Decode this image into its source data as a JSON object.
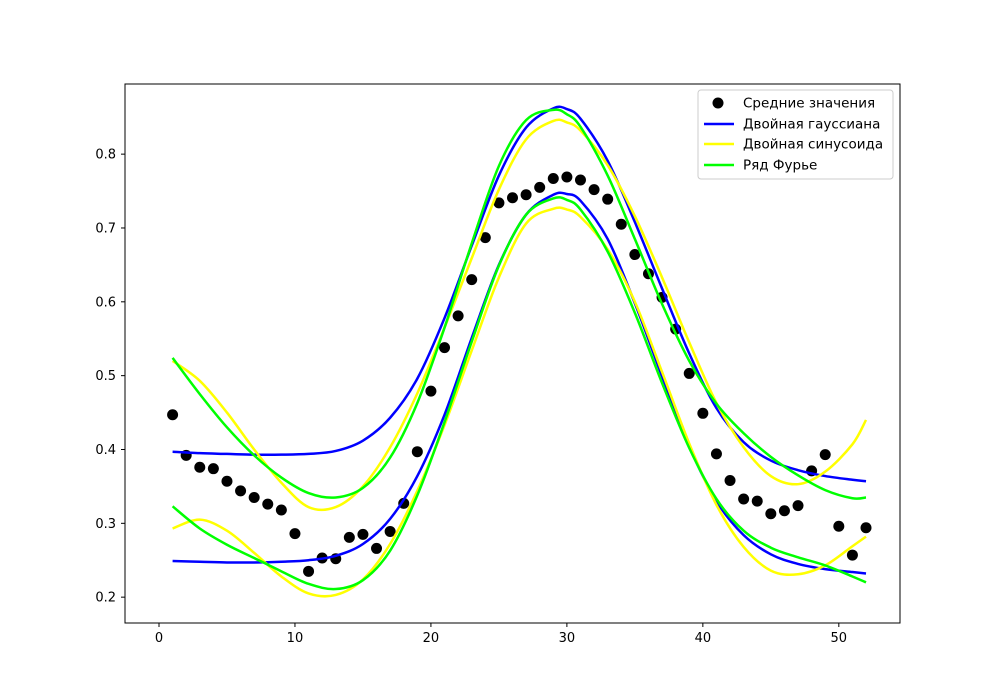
{
  "chart_data": {
    "type": "scatter",
    "title": "",
    "xlabel": "",
    "ylabel": "",
    "xlim": [
      -2.5,
      54.5
    ],
    "ylim": [
      0.165,
      0.895
    ],
    "xticks": [
      0,
      10,
      20,
      30,
      40,
      50
    ],
    "yticks": [
      0.2,
      0.3,
      0.4,
      0.5,
      0.6,
      0.7,
      0.8
    ],
    "legend_position": "top-right",
    "scatter": {
      "name": "Средние значения",
      "color": "#000000",
      "x": [
        1,
        2,
        3,
        4,
        5,
        6,
        7,
        8,
        9,
        10,
        11,
        12,
        13,
        14,
        15,
        16,
        17,
        18,
        19,
        20,
        21,
        22,
        23,
        24,
        25,
        26,
        27,
        28,
        29,
        30,
        31,
        32,
        33,
        34,
        35,
        36,
        37,
        38,
        39,
        40,
        41,
        42,
        43,
        44,
        45,
        46,
        47,
        48,
        49,
        50,
        51,
        52
      ],
      "y": [
        0.447,
        0.392,
        0.376,
        0.374,
        0.357,
        0.344,
        0.335,
        0.326,
        0.318,
        0.286,
        0.235,
        0.253,
        0.252,
        0.281,
        0.285,
        0.266,
        0.289,
        0.327,
        0.397,
        0.479,
        0.538,
        0.581,
        0.63,
        0.687,
        0.734,
        0.741,
        0.745,
        0.755,
        0.767,
        0.769,
        0.765,
        0.752,
        0.739,
        0.705,
        0.664,
        0.638,
        0.606,
        0.563,
        0.503,
        0.449,
        0.394,
        0.358,
        0.333,
        0.33,
        0.313,
        0.317,
        0.324,
        0.371,
        0.393,
        0.296,
        0.257,
        0.294
      ]
    },
    "series": [
      {
        "name": "Двойная гауссиана",
        "color": "#0000ff",
        "x": [
          1,
          3,
          5,
          7,
          9,
          11,
          13,
          15,
          17,
          19,
          21,
          23,
          25,
          27,
          29,
          30,
          31,
          33,
          35,
          37,
          39,
          41,
          43,
          45,
          47,
          49,
          51,
          52
        ],
        "upper": [
          0.397,
          0.395,
          0.394,
          0.393,
          0.393,
          0.394,
          0.398,
          0.412,
          0.443,
          0.496,
          0.578,
          0.676,
          0.771,
          0.836,
          0.862,
          0.861,
          0.848,
          0.791,
          0.708,
          0.618,
          0.53,
          0.456,
          0.41,
          0.385,
          0.372,
          0.364,
          0.359,
          0.357
        ],
        "lower": [
          0.249,
          0.248,
          0.247,
          0.247,
          0.248,
          0.25,
          0.256,
          0.272,
          0.306,
          0.364,
          0.447,
          0.551,
          0.65,
          0.718,
          0.745,
          0.746,
          0.737,
          0.685,
          0.598,
          0.499,
          0.404,
          0.33,
          0.284,
          0.258,
          0.245,
          0.238,
          0.234,
          0.232
        ]
      },
      {
        "name": "Двойная синусоида",
        "color": "#ffff00",
        "x": [
          1,
          3,
          5,
          7,
          9,
          11,
          13,
          15,
          17,
          19,
          21,
          23,
          25,
          27,
          29,
          30,
          31,
          33,
          35,
          37,
          39,
          41,
          43,
          45,
          47,
          49,
          51,
          52
        ],
        "upper": [
          0.52,
          0.493,
          0.45,
          0.4,
          0.355,
          0.322,
          0.322,
          0.35,
          0.403,
          0.476,
          0.565,
          0.659,
          0.752,
          0.82,
          0.845,
          0.843,
          0.832,
          0.785,
          0.716,
          0.633,
          0.545,
          0.463,
          0.403,
          0.364,
          0.353,
          0.37,
          0.407,
          0.44
        ],
        "lower": [
          0.293,
          0.305,
          0.29,
          0.26,
          0.228,
          0.205,
          0.203,
          0.224,
          0.272,
          0.344,
          0.433,
          0.534,
          0.633,
          0.706,
          0.726,
          0.725,
          0.715,
          0.671,
          0.6,
          0.505,
          0.408,
          0.325,
          0.268,
          0.236,
          0.231,
          0.243,
          0.269,
          0.282
        ]
      },
      {
        "name": "Ряд Фурье",
        "color": "#00ff00",
        "x": [
          1,
          3,
          5,
          7,
          9,
          11,
          13,
          15,
          17,
          19,
          21,
          23,
          25,
          27,
          29,
          30,
          31,
          33,
          35,
          37,
          39,
          41,
          43,
          45,
          47,
          49,
          51,
          52
        ],
        "upper": [
          0.524,
          0.475,
          0.43,
          0.392,
          0.362,
          0.341,
          0.335,
          0.348,
          0.389,
          0.463,
          0.565,
          0.679,
          0.784,
          0.846,
          0.86,
          0.854,
          0.837,
          0.771,
          0.685,
          0.597,
          0.52,
          0.462,
          0.422,
          0.39,
          0.365,
          0.345,
          0.334,
          0.335
        ],
        "lower": [
          0.323,
          0.293,
          0.271,
          0.253,
          0.235,
          0.218,
          0.211,
          0.223,
          0.263,
          0.338,
          0.437,
          0.546,
          0.649,
          0.718,
          0.74,
          0.738,
          0.725,
          0.668,
          0.585,
          0.49,
          0.402,
          0.333,
          0.29,
          0.267,
          0.254,
          0.243,
          0.228,
          0.22
        ]
      }
    ]
  }
}
